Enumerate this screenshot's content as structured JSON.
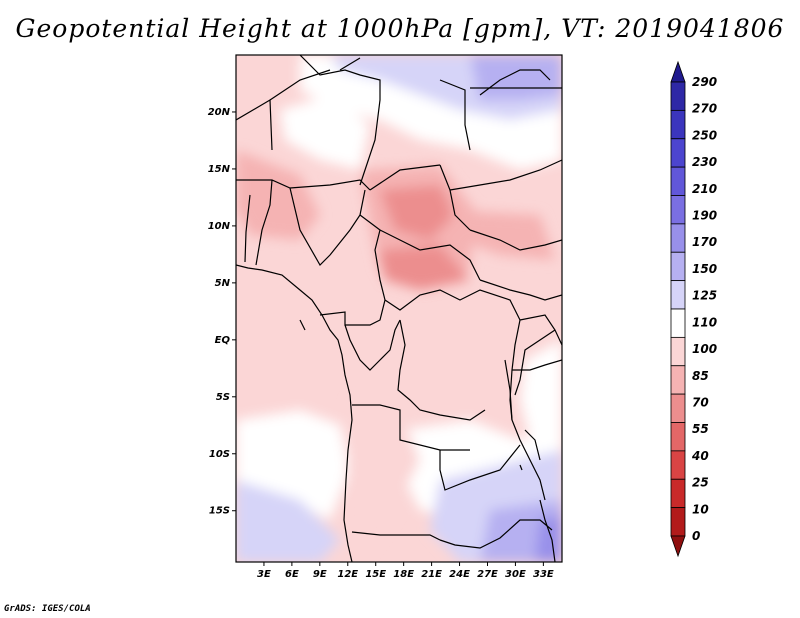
{
  "title": "Geopotential Height at 1000hPa [gpm], VT: 2019041806",
  "credit": "GrADS: IGES/COLA",
  "map": {
    "region": "Central Africa",
    "lon_range": [
      0,
      35
    ],
    "lat_range": [
      -19.5,
      25
    ],
    "lat_ticks": [
      "20N",
      "15N",
      "10N",
      "5N",
      "EQ",
      "5S",
      "10S",
      "15S"
    ],
    "lon_ticks": [
      "3E",
      "6E",
      "9E",
      "12E",
      "15E",
      "18E",
      "21E",
      "24E",
      "27E",
      "30E",
      "33E"
    ],
    "field": "geopotential height at 1000 hPa"
  },
  "colorbar": {
    "labels": [
      "290",
      "270",
      "250",
      "230",
      "210",
      "190",
      "170",
      "150",
      "125",
      "110",
      "100",
      "85",
      "70",
      "55",
      "40",
      "25",
      "10",
      "0"
    ],
    "colors": [
      "#201a8e",
      "#2e28a6",
      "#3b35bd",
      "#4c45cf",
      "#6157d9",
      "#7a6fe2",
      "#9890ea",
      "#b6b0f1",
      "#d6d4f8",
      "#ffffff",
      "#fbd6d6",
      "#f5b3b3",
      "#ec8e8e",
      "#e36767",
      "#d94444",
      "#c92a2a",
      "#b21b1b",
      "#8f0f0f"
    ]
  }
}
